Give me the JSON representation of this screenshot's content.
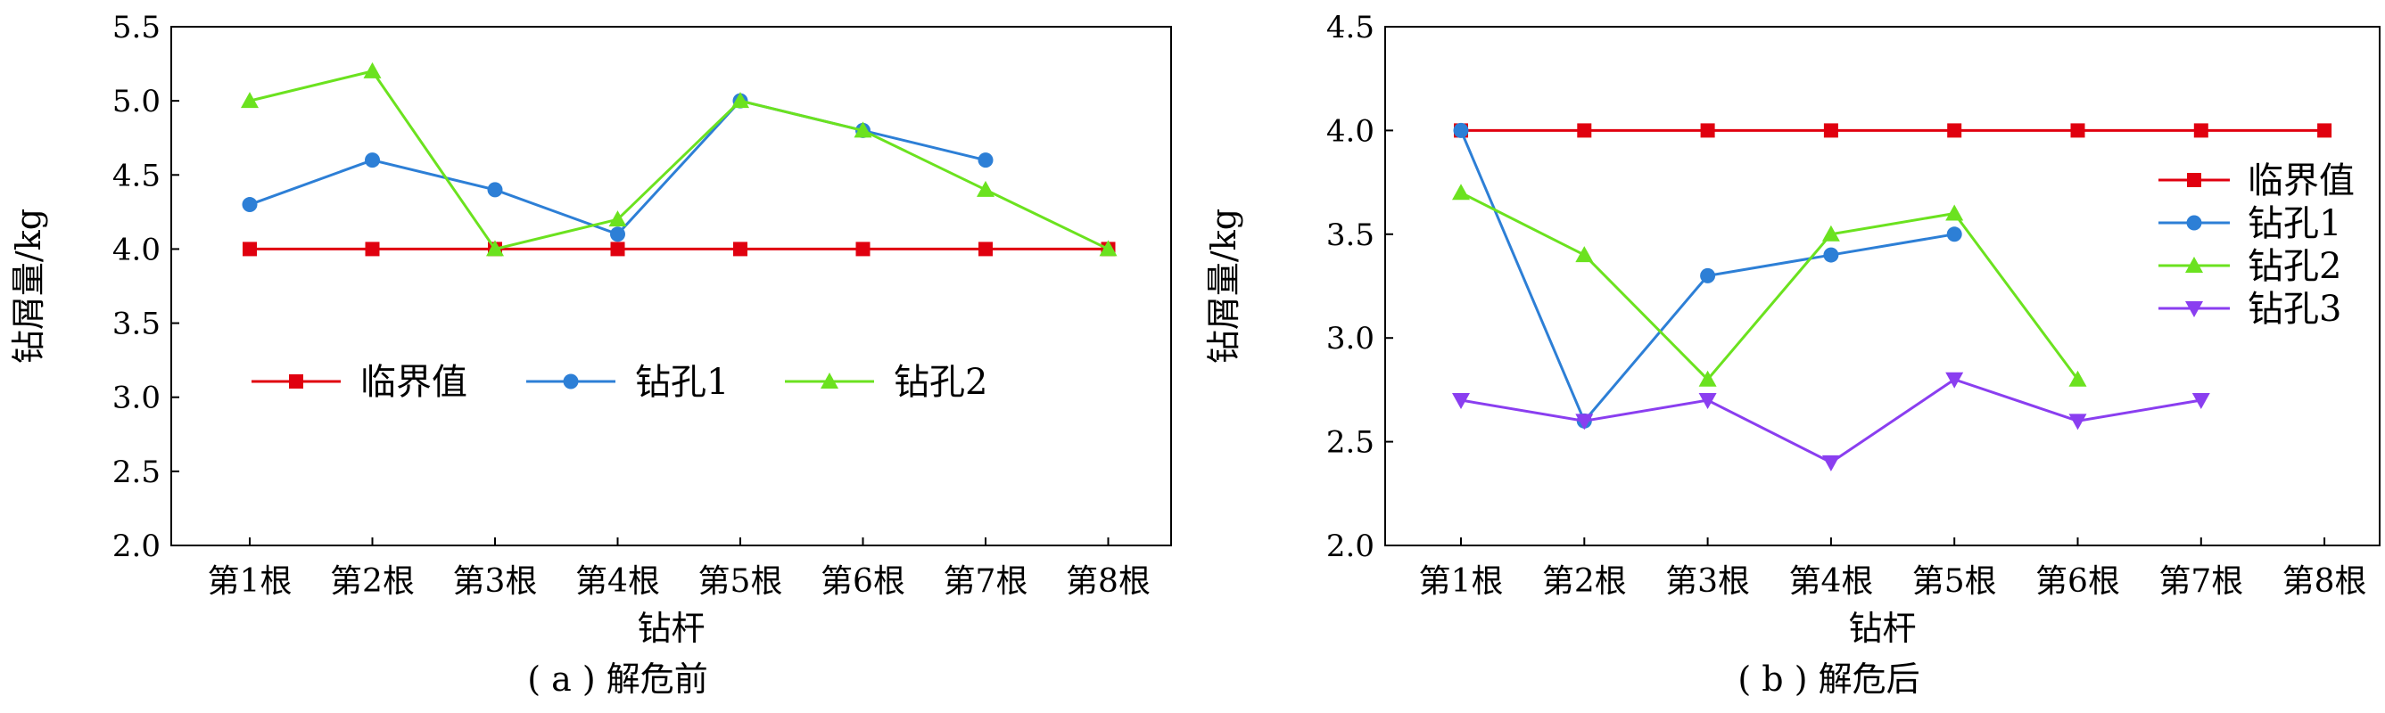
{
  "colors": {
    "axis": "#000000",
    "threshold": "#e0000f",
    "hole1": "#2d7fd6",
    "hole2": "#6be21f",
    "hole3": "#8a3ef0"
  },
  "chart_data": [
    {
      "type": "line",
      "caption": "( a ) 解危前",
      "xlabel": "钻杆",
      "ylabel": "钻屑量/kg",
      "categories": [
        "第1根",
        "第2根",
        "第3根",
        "第4根",
        "第5根",
        "第6根",
        "第7根",
        "第8根"
      ],
      "ylim": [
        2.0,
        5.5
      ],
      "yticks": [
        "2.0",
        "2.5",
        "3.0",
        "3.5",
        "4.0",
        "4.5",
        "5.0",
        "5.5"
      ],
      "legend_position": "middle, horizontal",
      "series": [
        {
          "name": "临界值",
          "marker": "square",
          "color": "#e0000f",
          "values": [
            4.0,
            4.0,
            4.0,
            4.0,
            4.0,
            4.0,
            4.0,
            4.0
          ]
        },
        {
          "name": "钻孔1",
          "marker": "circle",
          "color": "#2d7fd6",
          "values": [
            4.3,
            4.6,
            4.4,
            4.1,
            5.0,
            4.8,
            4.6,
            null
          ]
        },
        {
          "name": "钻孔2",
          "marker": "triangle",
          "color": "#6be21f",
          "values": [
            5.0,
            5.2,
            4.0,
            4.2,
            5.0,
            4.8,
            4.4,
            4.0
          ]
        }
      ]
    },
    {
      "type": "line",
      "caption": "( b ) 解危后",
      "xlabel": "钻杆",
      "ylabel": "钻屑量/kg",
      "categories": [
        "第1根",
        "第2根",
        "第3根",
        "第4根",
        "第5根",
        "第6根",
        "第7根",
        "第8根"
      ],
      "ylim": [
        2.0,
        4.5
      ],
      "yticks": [
        "2.0",
        "2.5",
        "3.0",
        "3.5",
        "4.0",
        "4.5"
      ],
      "legend_position": "right, vertical",
      "series": [
        {
          "name": "临界值",
          "marker": "square",
          "color": "#e0000f",
          "values": [
            4.0,
            4.0,
            4.0,
            4.0,
            4.0,
            4.0,
            4.0,
            4.0
          ]
        },
        {
          "name": "钻孔1",
          "marker": "circle",
          "color": "#2d7fd6",
          "values": [
            4.0,
            2.6,
            3.3,
            3.4,
            3.5,
            null,
            null,
            null
          ]
        },
        {
          "name": "钻孔2",
          "marker": "triangle",
          "color": "#6be21f",
          "values": [
            3.7,
            3.4,
            2.8,
            3.5,
            3.6,
            2.8,
            null,
            null
          ]
        },
        {
          "name": "钻孔3",
          "marker": "triangle-down",
          "color": "#8a3ef0",
          "values": [
            2.7,
            2.6,
            2.7,
            2.4,
            2.8,
            2.6,
            2.7,
            null
          ]
        }
      ]
    }
  ]
}
